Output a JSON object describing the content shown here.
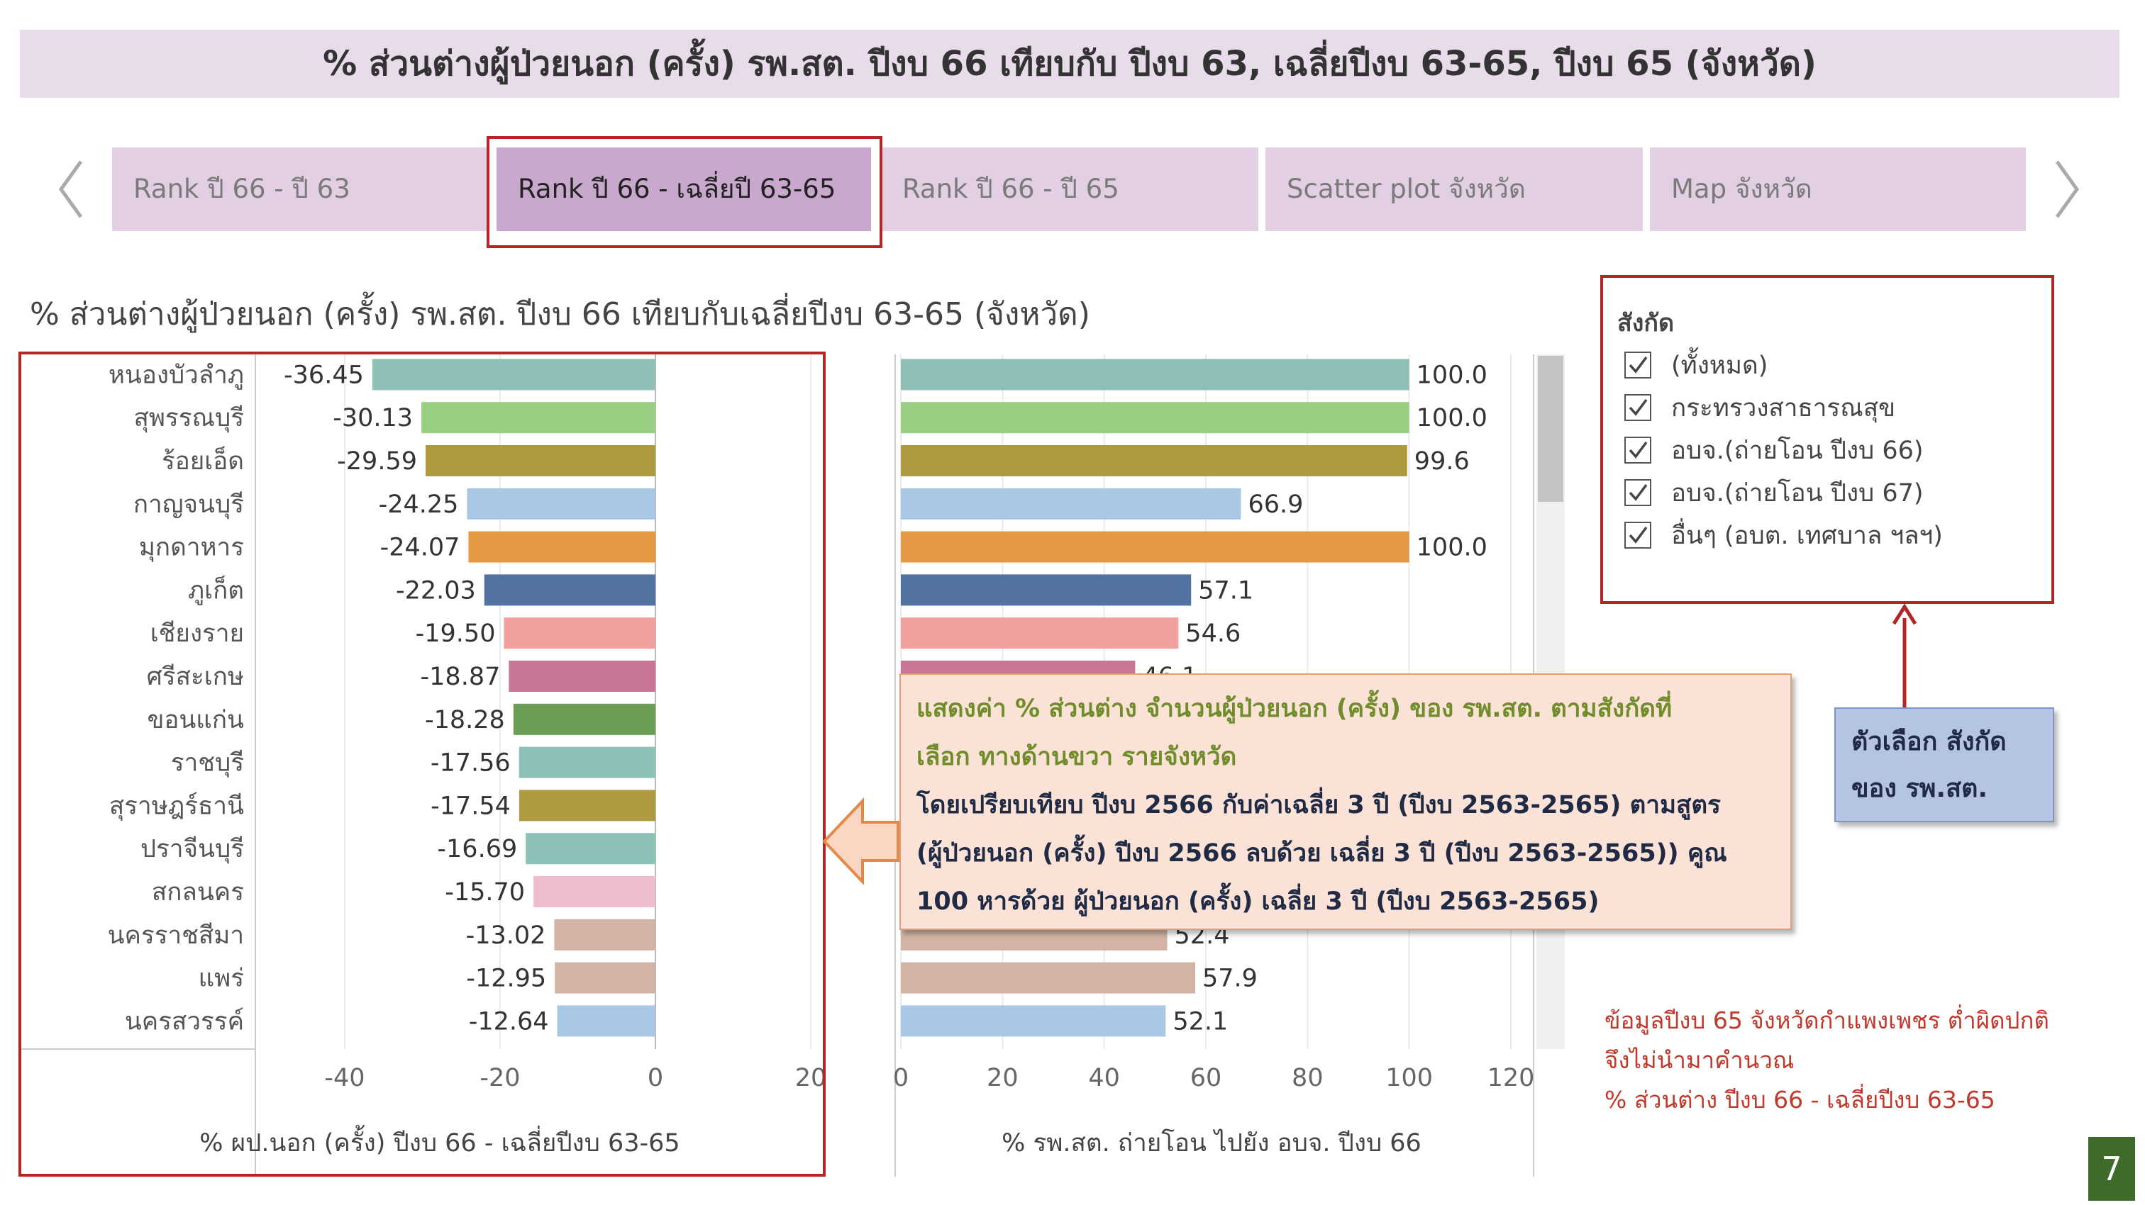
{
  "page_title": "% ส่วนต่างผู้ป่วยนอก (ครั้ง) รพ.สต. ปีงบ 66 เทียบกับ ปีงบ 63, เฉลี่ยปีงบ 63-65, ปีงบ 65 (จังหวัด)",
  "tabs": [
    {
      "label": "Rank ปี 66 - ปี 63",
      "active": false
    },
    {
      "label": "Rank ปี 66 - เฉลี่ยปี 63-65",
      "active": true
    },
    {
      "label": "Rank ปี 66 - ปี 65",
      "active": false
    },
    {
      "label": "Scatter plot จังหวัด",
      "active": false
    },
    {
      "label": "Map จังหวัด",
      "active": false
    }
  ],
  "sheet_title": "% ส่วนต่างผู้ป่วยนอก (ครั้ง) รพ.สต. ปีงบ 66 เทียบกับเฉลี่ยปีงบ 63-65 (จังหวัด)",
  "filter": {
    "title": "สังกัด",
    "items": [
      {
        "label": "(ทั้งหมด)",
        "checked": true
      },
      {
        "label": "กระทรวงสาธารณสุข",
        "checked": true
      },
      {
        "label": "อบจ.(ถ่ายโอน ปีงบ 66)",
        "checked": true
      },
      {
        "label": "อบจ.(ถ่ายโอน ปีงบ 67)",
        "checked": true
      },
      {
        "label": "อื่นๆ (อบต. เทศบาล ฯลฯ)",
        "checked": true
      }
    ]
  },
  "callout": {
    "line1": "แสดงค่า % ส่วนต่าง จำนวนผู้ป่วยนอก (ครั้ง) ของ รพ.สต. ตามสังกัดที่",
    "line2": "เลือก ทางด้านขวา รายจังหวัด",
    "line3": "โดยเปรียบเทียบ ปีงบ 2566 กับค่าเฉลี่ย 3 ปี (ปีงบ 2563-2565) ตามสูตร",
    "line4": "(ผู้ป่วยนอก (ครั้ง) ปีงบ 2566 ลบด้วย เฉลี่ย 3 ปี (ปีงบ 2563-2565)) คูณ",
    "line5": "100 หารด้วย ผู้ป่วยนอก (ครั้ง) เฉลี่ย 3 ปี (ปีงบ 2563-2565)"
  },
  "filter_note": {
    "line1": "ตัวเลือก สังกัด",
    "line2": "ของ รพ.สต."
  },
  "data_note": {
    "line1": "ข้อมูลปีงบ 65 จังหวัดกำแพงเพชร ต่ำผิดปกติ",
    "line2": "จึงไม่นำมาคำนวณ",
    "line3": "% ส่วนต่าง ปีงบ 66 - เฉลี่ยปีงบ 63-65"
  },
  "page_number": "7",
  "colors": {
    "banner": "#e8dcea",
    "tab": "#e2cfe3",
    "tab_active": "#c9a8cd",
    "highlight_border": "#b52525",
    "callout_bg": "#fbe2d6",
    "note_bg": "#b4c4e2",
    "page_badge": "#3f6b2a"
  },
  "chart_data": [
    {
      "type": "bar",
      "orientation": "horizontal",
      "categories": [
        "หนองบัวลำภู",
        "สุพรรณบุรี",
        "ร้อยเอ็ด",
        "กาญจนบุรี",
        "มุกดาหาร",
        "ภูเก็ต",
        "เชียงราย",
        "ศรีสะเกษ",
        "ขอนแก่น",
        "ราชบุรี",
        "สุราษฎร์ธานี",
        "ปราจีนบุรี",
        "สกลนคร",
        "นครราชสีมา",
        "แพร่",
        "นครสวรรค์"
      ],
      "values": [
        -36.45,
        -30.13,
        -29.59,
        -24.25,
        -24.07,
        -22.03,
        -19.5,
        -18.87,
        -18.28,
        -17.56,
        -17.54,
        -16.69,
        -15.7,
        -13.02,
        -12.95,
        -12.64
      ],
      "value_labels": [
        "-36.45",
        "-30.13",
        "-29.59",
        "-24.25",
        "-24.07",
        "-22.03",
        "-19.50",
        "-18.87",
        "-18.28",
        "-17.56",
        "-17.54",
        "-16.69",
        "-15.70",
        "-13.02",
        "-12.95",
        "-12.64"
      ],
      "colors": [
        "#8fbfb6",
        "#98cf83",
        "#b09a3f",
        "#a8c8e6",
        "#e39a42",
        "#52739f",
        "#f0a19d",
        "#c97595",
        "#6a9e55",
        "#8cc1b8",
        "#b09a3f",
        "#8cc1b8",
        "#efbcd0",
        "#d2b3a5",
        "#d2b3a5",
        "#a8c8e6"
      ],
      "xlabel": "% ผป.นอก (ครั้ง) ปีงบ 66 - เฉลี่ยปีงบ 63-65",
      "xlim": [
        -40,
        20
      ],
      "xticks": [
        -40,
        -20,
        0,
        20
      ],
      "grid": true
    },
    {
      "type": "bar",
      "orientation": "horizontal",
      "categories": [
        "หนองบัวลำภู",
        "สุพรรณบุรี",
        "ร้อยเอ็ด",
        "กาญจนบุรี",
        "มุกดาหาร",
        "ภูเก็ต",
        "เชียงราย",
        "ศรีสะเกษ",
        "ขอนแก่น",
        "ราชบุรี",
        "สุราษฎร์ธานี",
        "ปราจีนบุรี",
        "สกลนคร",
        "นครราชสีมา",
        "แพร่",
        "นครสวรรค์"
      ],
      "values": [
        100.0,
        100.0,
        99.6,
        66.9,
        100.0,
        57.1,
        54.6,
        46.1,
        0,
        0,
        0,
        0,
        0,
        52.4,
        57.9,
        52.1
      ],
      "value_labels": [
        "100.0",
        "100.0",
        "99.6",
        "66.9",
        "100.0",
        "57.1",
        "54.6",
        "46.1",
        "",
        "",
        "",
        "",
        "",
        "52.4",
        "57.9",
        "52.1"
      ],
      "colors": [
        "#8fbfb6",
        "#98cf83",
        "#b09a3f",
        "#a8c8e6",
        "#e39a42",
        "#52739f",
        "#f0a19d",
        "#c97595",
        "#6a9e55",
        "#8cc1b8",
        "#b09a3f",
        "#8cc1b8",
        "#efbcd0",
        "#d2b3a5",
        "#d2b3a5",
        "#a8c8e6"
      ],
      "xlabel": "% รพ.สต. ถ่ายโอน ไปยัง อบจ. ปีงบ 66",
      "xlim": [
        0,
        120
      ],
      "xticks": [
        0,
        20,
        40,
        60,
        80,
        100,
        120
      ],
      "grid": true
    }
  ]
}
